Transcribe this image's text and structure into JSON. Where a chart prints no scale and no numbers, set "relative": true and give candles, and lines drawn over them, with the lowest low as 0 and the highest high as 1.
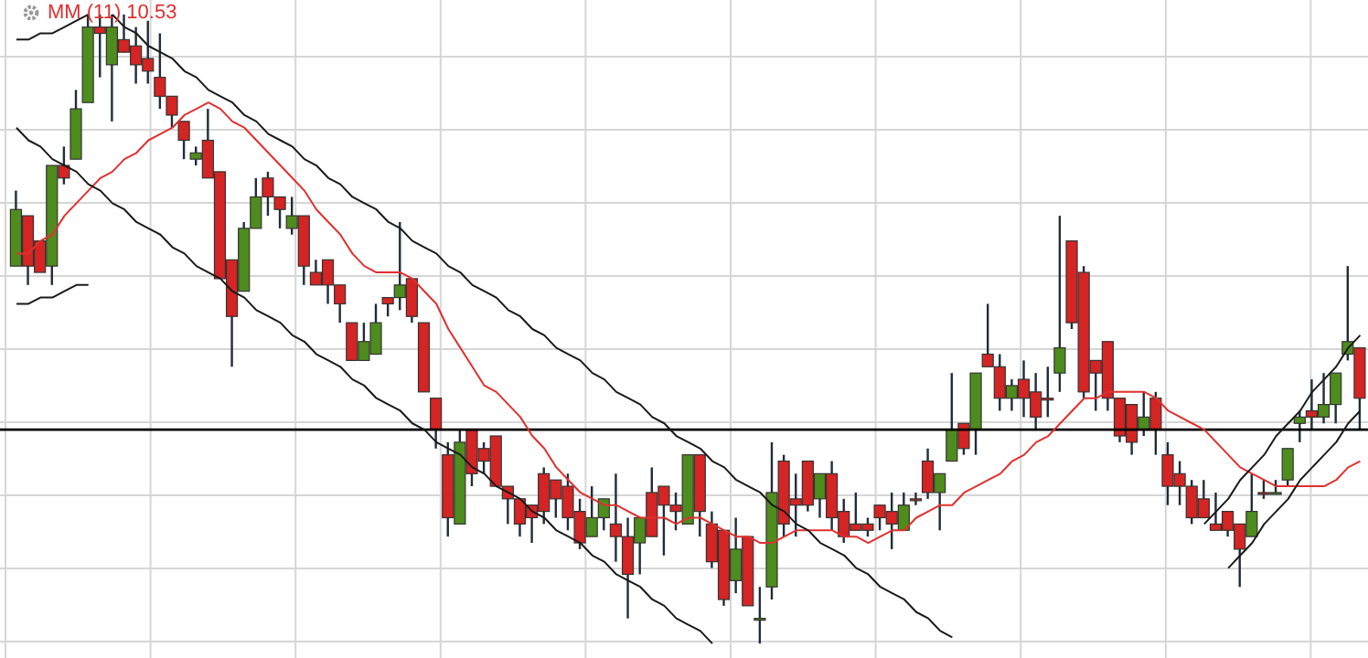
{
  "chart_data": {
    "type": "candlestick",
    "relative": true,
    "grid": true,
    "legend": "top left",
    "colors": [
      "#4e8c1e",
      "#d42424",
      "#d42424",
      "#4e8c1e",
      "#d42424",
      "#4e8c1e",
      "#4e8c1e",
      "#d42424",
      "#4e8c1e",
      "#d42424",
      "#d42424",
      "#d42424",
      "#d42424",
      "#d42424",
      "#d42424",
      "#4e8c1e",
      "#d42424",
      "#d42424",
      "#d42424",
      "#4e8c1e",
      "#4e8c1e",
      "#d42424",
      "#d42424",
      "#4e8c1e",
      "#d42424",
      "#d42424",
      "#d42424",
      "#d42424",
      "#d42424",
      "#4e8c1e",
      "#4e8c1e",
      "#d42424",
      "#4e8c1e",
      "#d42424",
      "#d42424",
      "#d42424",
      "#d42424",
      "#4e8c1e",
      "#d42424",
      "#d42424",
      "#d42424",
      "#d42424",
      "#d42424",
      "#d42424",
      "#d42424",
      "#d42424",
      "#d42424",
      "#d42424",
      "#4e8c1e",
      "#4e8c1e",
      "#d42424",
      "#d42424",
      "#4e8c1e",
      "#d42424",
      "#d42424",
      "#d42424",
      "#4e8c1e",
      "#d42424",
      "#d42424",
      "#d42424",
      "#4e8c1e",
      "#d42424",
      "#4e8c1e",
      "#4e8c1e",
      "#d42424",
      "#d42424",
      "#d42424",
      "#4e8c1e",
      "#d42424",
      "#d42424",
      "#d42424",
      "#d42424",
      "#d42424",
      "#d42424",
      "#4e8c1e",
      "#d42424",
      "#d42424",
      "#4e8c1e",
      "#4e8c1e",
      "#d42424",
      "#4e8c1e",
      "#d42424",
      "#d42424",
      "#4e8c1e",
      "#d42424",
      "#d42424",
      "#d42424",
      "#4e8c1e",
      "#d42424",
      "#d42424",
      "#d42424",
      "#d42424",
      "#d42424",
      "#d42424",
      "#4e8c1e",
      "#d42424",
      "#d42424",
      "#d42424",
      "#d42424",
      "#d42424",
      "#d42424",
      "#d42424",
      "#d42424",
      "#4e8c1e",
      "#d42424",
      "#4e8c1e",
      "#4e8c1e",
      "#4e8c1e",
      "#d42424",
      "#4e8c1e",
      "#4e8c1e",
      "#4e8c1e",
      "#d42424"
    ],
    "categories": [
      null,
      null,
      null,
      null,
      null,
      null,
      null,
      null,
      null,
      null,
      null,
      null,
      null,
      null,
      null,
      null,
      null,
      null,
      null,
      null,
      null,
      null,
      null,
      null,
      null,
      null,
      null,
      null,
      null,
      null,
      null,
      null,
      null,
      null,
      null,
      null,
      null,
      null,
      null,
      null,
      null,
      null,
      null,
      null,
      null,
      null,
      null,
      null,
      null,
      null,
      null,
      null,
      null,
      null,
      null,
      null,
      null,
      null,
      null,
      null,
      null,
      null,
      null,
      null,
      null,
      null,
      null,
      null,
      null,
      null,
      null,
      null,
      null,
      null,
      null,
      null,
      null,
      null,
      null,
      null,
      null,
      null,
      null,
      null,
      null,
      null,
      null,
      null,
      null,
      null,
      null,
      null,
      null,
      null,
      null,
      null,
      null,
      null,
      null,
      null,
      null,
      null,
      null,
      null,
      null,
      null,
      null,
      null,
      null,
      null,
      null,
      null,
      null
    ],
    "ohlc": [
      [
        0.6,
        0.72,
        0.6,
        0.69
      ],
      [
        0.68,
        0.68,
        0.57,
        0.6
      ],
      [
        0.64,
        0.64,
        0.59,
        0.59
      ],
      [
        0.6,
        0.76,
        0.57,
        0.76
      ],
      [
        0.76,
        0.79,
        0.73,
        0.74
      ],
      [
        0.77,
        0.88,
        0.77,
        0.85
      ],
      [
        0.86,
        1.0,
        0.86,
        0.98
      ],
      [
        0.98,
        1.0,
        0.9,
        0.97
      ],
      [
        0.92,
        1.0,
        0.83,
        0.98
      ],
      [
        0.96,
        1.0,
        0.94,
        0.94
      ],
      [
        0.95,
        0.98,
        0.89,
        0.92
      ],
      [
        0.93,
        0.99,
        0.89,
        0.91
      ],
      [
        0.9,
        0.97,
        0.85,
        0.87
      ],
      [
        0.87,
        0.87,
        0.82,
        0.84
      ],
      [
        0.83,
        0.83,
        0.77,
        0.8
      ],
      [
        0.77,
        0.79,
        0.76,
        0.78
      ],
      [
        0.8,
        0.85,
        0.74,
        0.74
      ],
      [
        0.75,
        0.75,
        0.58,
        0.58
      ],
      [
        0.61,
        0.61,
        0.44,
        0.52
      ],
      [
        0.56,
        0.67,
        0.56,
        0.66
      ],
      [
        0.66,
        0.74,
        0.66,
        0.71
      ],
      [
        0.74,
        0.75,
        0.68,
        0.71
      ],
      [
        0.71,
        0.71,
        0.66,
        0.69
      ],
      [
        0.66,
        0.71,
        0.65,
        0.68
      ],
      [
        0.68,
        0.68,
        0.57,
        0.6
      ],
      [
        0.59,
        0.61,
        0.57,
        0.57
      ],
      [
        0.61,
        0.61,
        0.54,
        0.57
      ],
      [
        0.57,
        0.57,
        0.51,
        0.54
      ],
      [
        0.51,
        0.51,
        0.45,
        0.45
      ],
      [
        0.45,
        0.51,
        0.45,
        0.48
      ],
      [
        0.46,
        0.54,
        0.46,
        0.51
      ],
      [
        0.55,
        0.55,
        0.52,
        0.54
      ],
      [
        0.55,
        0.67,
        0.53,
        0.57
      ],
      [
        0.58,
        0.58,
        0.51,
        0.52
      ],
      [
        0.51,
        0.51,
        0.4,
        0.4
      ],
      [
        0.39,
        0.39,
        0.31,
        0.34
      ],
      [
        0.3,
        0.32,
        0.17,
        0.2
      ],
      [
        0.19,
        0.34,
        0.19,
        0.32
      ],
      [
        0.34,
        0.34,
        0.25,
        0.27
      ],
      [
        0.31,
        0.32,
        0.27,
        0.29
      ],
      [
        0.33,
        0.33,
        0.25,
        0.25
      ],
      [
        0.25,
        0.25,
        0.19,
        0.23
      ],
      [
        0.23,
        0.23,
        0.17,
        0.19
      ],
      [
        0.22,
        0.22,
        0.16,
        0.2
      ],
      [
        0.27,
        0.28,
        0.19,
        0.21
      ],
      [
        0.26,
        0.26,
        0.2,
        0.23
      ],
      [
        0.25,
        0.27,
        0.18,
        0.2
      ],
      [
        0.21,
        0.23,
        0.15,
        0.16
      ],
      [
        0.17,
        0.25,
        0.17,
        0.2
      ],
      [
        0.2,
        0.23,
        0.18,
        0.23
      ],
      [
        0.19,
        0.27,
        0.13,
        0.17
      ],
      [
        0.17,
        0.2,
        0.04,
        0.11
      ],
      [
        0.16,
        0.2,
        0.11,
        0.2
      ],
      [
        0.24,
        0.28,
        0.17,
        0.17
      ],
      [
        0.25,
        0.25,
        0.14,
        0.22
      ],
      [
        0.22,
        0.24,
        0.18,
        0.21
      ],
      [
        0.19,
        0.3,
        0.19,
        0.3
      ],
      [
        0.3,
        0.3,
        0.17,
        0.21
      ],
      [
        0.19,
        0.21,
        0.12,
        0.13
      ],
      [
        0.18,
        0.18,
        0.06,
        0.07
      ],
      [
        0.1,
        0.2,
        0.08,
        0.15
      ],
      [
        0.17,
        0.17,
        0.06,
        0.06
      ],
      [
        0.04,
        0.09,
        0,
        0.04
      ],
      [
        0.09,
        0.32,
        0.07,
        0.24
      ],
      [
        0.29,
        0.3,
        0.17,
        0.19
      ],
      [
        0.23,
        0.27,
        0.17,
        0.22
      ],
      [
        0.29,
        0.29,
        0.21,
        0.22
      ],
      [
        0.23,
        0.27,
        0.2,
        0.27
      ],
      [
        0.27,
        0.29,
        0.18,
        0.2
      ],
      [
        0.21,
        0.23,
        0.16,
        0.17
      ],
      [
        0.19,
        0.24,
        0.18,
        0.18
      ],
      [
        0.19,
        0.2,
        0.17,
        0.18
      ],
      [
        0.22,
        0.22,
        0.18,
        0.2
      ],
      [
        0.21,
        0.24,
        0.15,
        0.19
      ],
      [
        0.18,
        0.24,
        0.18,
        0.22
      ],
      [
        0.23,
        0.24,
        0.22,
        0.23
      ],
      [
        0.29,
        0.31,
        0.23,
        0.24
      ],
      [
        0.24,
        0.27,
        0.18,
        0.27
      ],
      [
        0.29,
        0.43,
        0.29,
        0.34
      ],
      [
        0.35,
        0.35,
        0.3,
        0.31
      ],
      [
        0.34,
        0.43,
        0.3,
        0.43
      ],
      [
        0.46,
        0.54,
        0.44,
        0.44
      ],
      [
        0.44,
        0.46,
        0.37,
        0.39
      ],
      [
        0.39,
        0.42,
        0.37,
        0.41
      ],
      [
        0.42,
        0.45,
        0.36,
        0.39
      ],
      [
        0.4,
        0.43,
        0.34,
        0.36
      ],
      [
        0.39,
        0.44,
        0.36,
        0.39
      ],
      [
        0.43,
        0.68,
        0.4,
        0.47
      ],
      [
        0.64,
        0.64,
        0.5,
        0.51
      ],
      [
        0.59,
        0.6,
        0.39,
        0.4
      ],
      [
        0.45,
        0.45,
        0.37,
        0.43
      ],
      [
        0.48,
        0.48,
        0.37,
        0.39
      ],
      [
        0.39,
        0.39,
        0.32,
        0.33
      ],
      [
        0.38,
        0.38,
        0.3,
        0.32
      ],
      [
        0.34,
        0.4,
        0.33,
        0.36
      ],
      [
        0.39,
        0.4,
        0.3,
        0.34
      ],
      [
        0.3,
        0.32,
        0.22,
        0.25
      ],
      [
        0.27,
        0.29,
        0.22,
        0.25
      ],
      [
        0.25,
        0.26,
        0.19,
        0.2
      ],
      [
        0.23,
        0.26,
        0.2,
        0.2
      ],
      [
        0.19,
        0.24,
        0.18,
        0.18
      ],
      [
        0.21,
        0.21,
        0.17,
        0.18
      ],
      [
        0.19,
        0.19,
        0.09,
        0.15
      ],
      [
        0.17,
        0.27,
        0.17,
        0.21
      ],
      [
        0.24,
        0.26,
        0.23,
        0.24
      ],
      [
        0.24,
        0.26,
        0.24,
        0.24
      ],
      [
        0.26,
        0.31,
        0.25,
        0.31
      ],
      [
        0.35,
        0.37,
        0.32,
        0.36
      ],
      [
        0.37,
        0.42,
        0.34,
        0.36
      ],
      [
        0.36,
        0.43,
        0.35,
        0.38
      ],
      [
        0.38,
        0.43,
        0.35,
        0.43
      ],
      [
        0.46,
        0.6,
        0.45,
        0.48
      ],
      [
        0.47,
        0.47,
        0.34,
        0.39
      ]
    ],
    "series": [
      {
        "name": "MM (11) 10.53",
        "type": "line",
        "color": "#e0302f",
        "values": [
          0.62,
          0.62,
          0.64,
          0.65,
          0.68,
          0.7,
          0.72,
          0.74,
          0.75,
          0.77,
          0.78,
          0.8,
          0.81,
          0.82,
          0.84,
          0.85,
          0.86,
          0.85,
          0.83,
          0.82,
          0.8,
          0.78,
          0.76,
          0.74,
          0.72,
          0.69,
          0.67,
          0.65,
          0.62,
          0.6,
          0.59,
          0.59,
          0.59,
          0.58,
          0.56,
          0.54,
          0.5,
          0.47,
          0.44,
          0.41,
          0.4,
          0.38,
          0.36,
          0.33,
          0.31,
          0.28,
          0.26,
          0.24,
          0.23,
          0.22,
          0.22,
          0.21,
          0.2,
          0.2,
          0.2,
          0.19,
          0.2,
          0.2,
          0.19,
          0.18,
          0.17,
          0.17,
          0.16,
          0.16,
          0.17,
          0.18,
          0.18,
          0.18,
          0.18,
          0.17,
          0.17,
          0.16,
          0.17,
          0.18,
          0.18,
          0.2,
          0.21,
          0.22,
          0.22,
          0.24,
          0.25,
          0.26,
          0.27,
          0.29,
          0.3,
          0.32,
          0.33,
          0.35,
          0.37,
          0.39,
          0.39,
          0.4,
          0.4,
          0.4,
          0.4,
          0.39,
          0.37,
          0.36,
          0.35,
          0.34,
          0.32,
          0.3,
          0.28,
          0.27,
          0.26,
          0.25,
          0.25,
          0.25,
          0.25,
          0.25,
          0.26,
          0.28,
          0.29
        ]
      },
      {
        "type": "line",
        "color": "#1a1a1a",
        "values": [
          0.96,
          0.96,
          0.97,
          0.97,
          0.98,
          0.99,
          1.0,
          null,
          null,
          null,
          null,
          null,
          null,
          null,
          null,
          null,
          null,
          null,
          null,
          null,
          null,
          null,
          null,
          null,
          null,
          null,
          null,
          null,
          null,
          null,
          null,
          null,
          null,
          null,
          null,
          null,
          null,
          null,
          null,
          null,
          null,
          null,
          null,
          null,
          null,
          null,
          null,
          null,
          null,
          null,
          null,
          null,
          null,
          null,
          null,
          null,
          null,
          null,
          null,
          null,
          null,
          null,
          null,
          null,
          null,
          null,
          null,
          null,
          null,
          null,
          null,
          null,
          null,
          null,
          null,
          null,
          null,
          null,
          null,
          null,
          null,
          null,
          null,
          null,
          null,
          null,
          null,
          null,
          null,
          null,
          null,
          null,
          null,
          null,
          null,
          null,
          null,
          null,
          null,
          null,
          null,
          null,
          null,
          null,
          null,
          null,
          null,
          null,
          null,
          null,
          null,
          null,
          null
        ]
      },
      {
        "type": "line",
        "color": "#1a1a1a",
        "values": [
          0.54,
          0.54,
          0.55,
          0.55,
          0.56,
          0.57,
          0.57,
          null,
          null,
          null,
          null,
          null,
          null,
          null,
          null,
          null,
          null,
          null,
          null,
          null,
          null,
          null,
          null,
          null,
          null,
          null,
          null,
          null,
          null,
          null,
          null,
          null,
          null,
          null,
          null,
          null,
          null,
          null,
          null,
          null,
          null,
          null,
          null,
          null,
          null,
          null,
          null,
          null,
          null,
          null,
          null,
          null,
          null,
          null,
          null,
          null,
          null,
          null,
          null,
          null,
          null,
          null,
          null,
          null,
          null,
          null,
          null,
          null,
          null,
          null,
          null,
          null,
          null,
          null,
          null,
          null,
          null,
          null,
          null,
          null,
          null,
          null,
          null,
          null,
          null,
          null,
          null,
          null,
          null,
          null,
          null,
          null,
          null,
          null,
          null,
          null,
          null,
          null,
          null,
          null,
          null,
          null,
          null,
          null,
          null,
          null,
          null,
          null,
          null,
          null,
          null,
          null,
          null
        ]
      },
      {
        "type": "line",
        "color": "#1a1a1a",
        "values": [
          null,
          null,
          null,
          null,
          null,
          null,
          null,
          null,
          1.0,
          0.98,
          0.97,
          0.95,
          0.94,
          0.93,
          0.91,
          0.9,
          0.88,
          0.87,
          0.86,
          0.84,
          0.83,
          0.81,
          0.8,
          0.79,
          0.77,
          0.76,
          0.74,
          0.73,
          0.71,
          0.7,
          0.69,
          0.67,
          0.66,
          0.64,
          0.63,
          0.62,
          0.6,
          0.59,
          0.57,
          0.56,
          0.55,
          0.53,
          0.52,
          0.5,
          0.49,
          0.47,
          0.46,
          0.45,
          0.43,
          0.42,
          0.4,
          0.39,
          0.38,
          0.36,
          0.35,
          0.33,
          0.32,
          0.31,
          0.29,
          0.28,
          0.26,
          0.25,
          0.24,
          0.22,
          0.21,
          0.19,
          0.18,
          0.16,
          0.15,
          0.14,
          0.12,
          0.11,
          0.09,
          0.08,
          0.07,
          0.05,
          0.04,
          0.02,
          0.01,
          null,
          null,
          null,
          null,
          null,
          null,
          null,
          null,
          null,
          null,
          null,
          null,
          null,
          null,
          null,
          null,
          null,
          null,
          null,
          null,
          null,
          null,
          null,
          null,
          null,
          null,
          null,
          null,
          null,
          null,
          null,
          null,
          null,
          null
        ]
      },
      {
        "type": "line",
        "color": "#1a1a1a",
        "values": [
          0.82,
          0.8,
          0.79,
          0.77,
          0.76,
          0.75,
          0.73,
          0.72,
          0.7,
          0.69,
          0.67,
          0.66,
          0.65,
          0.63,
          0.62,
          0.6,
          0.59,
          0.58,
          0.56,
          0.55,
          0.53,
          0.52,
          0.51,
          0.49,
          0.48,
          0.46,
          0.45,
          0.44,
          0.42,
          0.41,
          0.39,
          0.38,
          0.37,
          0.35,
          0.34,
          0.32,
          0.31,
          0.3,
          0.28,
          0.27,
          0.25,
          0.24,
          0.23,
          0.21,
          0.2,
          0.18,
          0.17,
          0.16,
          0.14,
          0.13,
          0.11,
          0.1,
          0.09,
          0.07,
          0.06,
          0.04,
          0.03,
          0.02,
          0,
          null,
          null,
          null,
          null,
          null,
          null,
          null,
          null,
          null,
          null,
          null,
          null,
          null,
          null,
          null,
          null,
          null,
          null,
          null,
          null,
          null,
          null,
          null,
          null,
          null,
          null,
          null,
          null,
          null,
          null,
          null,
          null,
          null,
          null,
          null,
          null,
          null,
          null,
          null,
          null,
          null,
          null,
          null,
          null,
          null,
          null,
          null,
          null,
          null,
          null,
          null,
          null,
          null,
          null
        ]
      },
      {
        "type": "line",
        "color": "#1a1a1a",
        "values": [
          null,
          null,
          null,
          null,
          null,
          null,
          null,
          null,
          null,
          null,
          null,
          null,
          null,
          null,
          null,
          null,
          null,
          null,
          null,
          null,
          null,
          null,
          null,
          null,
          null,
          null,
          null,
          null,
          null,
          null,
          null,
          null,
          null,
          null,
          null,
          null,
          null,
          null,
          null,
          null,
          null,
          null,
          null,
          null,
          null,
          null,
          null,
          null,
          null,
          null,
          null,
          null,
          null,
          null,
          null,
          null,
          null,
          null,
          null,
          null,
          null,
          null,
          null,
          null,
          null,
          null,
          null,
          null,
          null,
          null,
          null,
          null,
          null,
          null,
          null,
          null,
          null,
          null,
          null,
          null,
          null,
          null,
          null,
          null,
          null,
          null,
          null,
          null,
          null,
          null,
          null,
          null,
          null,
          null,
          null,
          null,
          null,
          null,
          null,
          0.19,
          0.21,
          0.23,
          0.26,
          0.28,
          0.3,
          0.33,
          0.35,
          0.37,
          0.4,
          0.42,
          0.44,
          0.47,
          0.49
        ]
      },
      {
        "type": "line",
        "color": "#1a1a1a",
        "values": [
          null,
          null,
          null,
          null,
          null,
          null,
          null,
          null,
          null,
          null,
          null,
          null,
          null,
          null,
          null,
          null,
          null,
          null,
          null,
          null,
          null,
          null,
          null,
          null,
          null,
          null,
          null,
          null,
          null,
          null,
          null,
          null,
          null,
          null,
          null,
          null,
          null,
          null,
          null,
          null,
          null,
          null,
          null,
          null,
          null,
          null,
          null,
          null,
          null,
          null,
          null,
          null,
          null,
          null,
          null,
          null,
          null,
          null,
          null,
          null,
          null,
          null,
          null,
          null,
          null,
          null,
          null,
          null,
          null,
          null,
          null,
          null,
          null,
          null,
          null,
          null,
          null,
          null,
          null,
          null,
          null,
          null,
          null,
          null,
          null,
          null,
          null,
          null,
          null,
          null,
          null,
          null,
          null,
          null,
          null,
          null,
          null,
          null,
          null,
          null,
          null,
          0.12,
          0.14,
          0.16,
          0.19,
          0.21,
          0.23,
          0.26,
          0.28,
          0.3,
          0.32,
          0.35,
          0.37
        ]
      }
    ],
    "ref_lines": [
      {
        "axis": "y",
        "value": 0.34,
        "color": "#000000"
      }
    ]
  }
}
